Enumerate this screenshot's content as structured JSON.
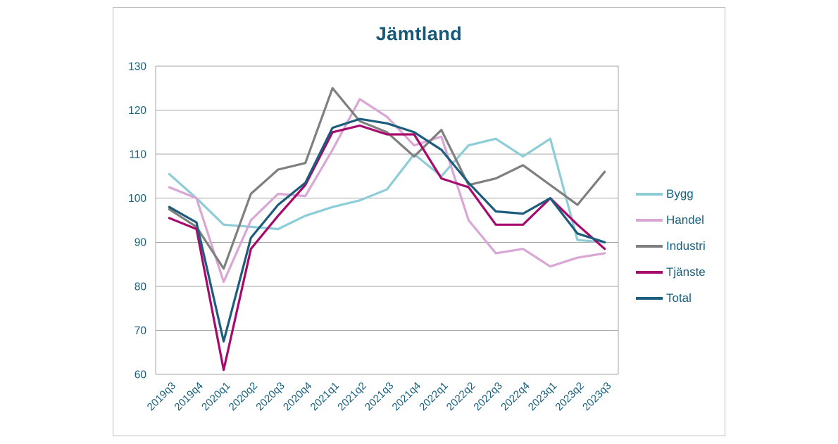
{
  "title": "Jämtland",
  "styles": {
    "text_color": "#17607f",
    "title_color": "#15587a",
    "grid_color": "#a6a6a6",
    "panel_border_color": "#bdbdbd",
    "background": "#ffffff"
  },
  "chart_data": {
    "type": "line",
    "title": "Jämtland",
    "categories": [
      "2019q3",
      "2019q4",
      "2020q1",
      "2020q2",
      "2020q3",
      "2020q4",
      "2021q1",
      "2021q2",
      "2021q3",
      "2021q4",
      "2022q1",
      "2022q2",
      "2022q3",
      "2022q4",
      "2023q1",
      "2023q2",
      "2023q3"
    ],
    "series": [
      {
        "name": "Bygg",
        "color": "#8dcdd8",
        "values": [
          105.5,
          100,
          94,
          93.5,
          93,
          96,
          98,
          99.5,
          102,
          110,
          105,
          112,
          113.5,
          109.5,
          113.5,
          90.5,
          90
        ]
      },
      {
        "name": "Handel",
        "color": "#d9a6d6",
        "values": [
          102.5,
          100,
          81,
          95,
          101,
          100.5,
          111,
          122.5,
          118.5,
          112,
          114,
          95,
          87.5,
          88.5,
          84.5,
          86.5,
          87.5
        ]
      },
      {
        "name": "Industri",
        "color": "#7f7f7f",
        "values": [
          97.5,
          93.5,
          84,
          101,
          106.5,
          108,
          125,
          117.5,
          115,
          109.5,
          115.5,
          103,
          104.5,
          107.5,
          103,
          98.5,
          106
        ]
      },
      {
        "name": "Tjänste",
        "color": "#a60a6c",
        "values": [
          95.5,
          93,
          61,
          88.5,
          96,
          103,
          115,
          116.5,
          114.5,
          114.5,
          104.5,
          102.5,
          94,
          94,
          100,
          94,
          88.5
        ]
      },
      {
        "name": "Total",
        "color": "#1c5c7c",
        "values": [
          98,
          94.5,
          67.5,
          91,
          98.5,
          103.5,
          116,
          118,
          117,
          115,
          111,
          103.5,
          97,
          96.5,
          100,
          92,
          90
        ]
      }
    ],
    "ylim": [
      60,
      130
    ],
    "ytick_step": 10,
    "xlabel": "",
    "ylabel": "",
    "grid": true,
    "legend_position": "right"
  }
}
